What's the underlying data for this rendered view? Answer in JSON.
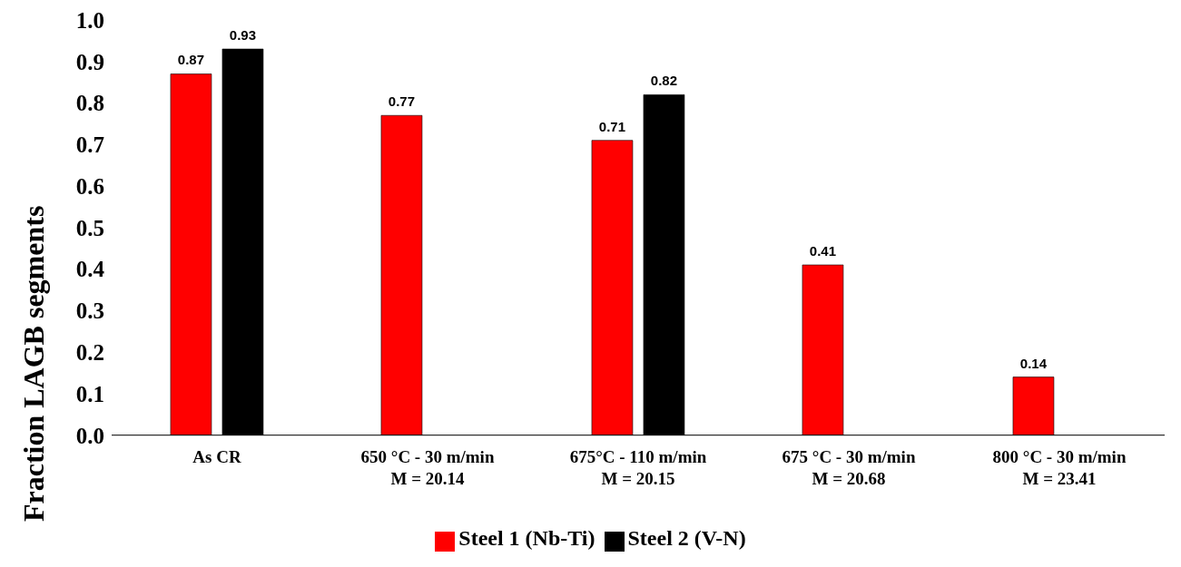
{
  "chart_data": {
    "type": "bar",
    "ylabel": "Fraction LAGB segments",
    "categories": [
      "As CR",
      "650 °C - 30 m/min\nM = 20.14",
      "675°C - 110 m/min\nM = 20.15",
      "675 °C - 30 m/min\nM = 20.68",
      "800 °C - 30 m/min\nM = 23.41"
    ],
    "series": [
      {
        "name": "Steel 1 (Nb-Ti)",
        "color": "#ff0000",
        "values": [
          0.87,
          0.77,
          0.71,
          0.41,
          0.14
        ]
      },
      {
        "name": "Steel 2 (V-N)",
        "color": "#000000",
        "values": [
          0.93,
          null,
          0.82,
          null,
          null
        ]
      }
    ],
    "ylim": [
      0,
      1
    ],
    "yticks": [
      {
        "value": 0,
        "label": "0.0"
      },
      0.1,
      0.2,
      0.3,
      0.4,
      0.5,
      0.6,
      0.7,
      0.8,
      0.9,
      {
        "value": 1,
        "label": "1.0"
      }
    ],
    "data_labels": true,
    "grid": false,
    "legend": "bottom"
  }
}
